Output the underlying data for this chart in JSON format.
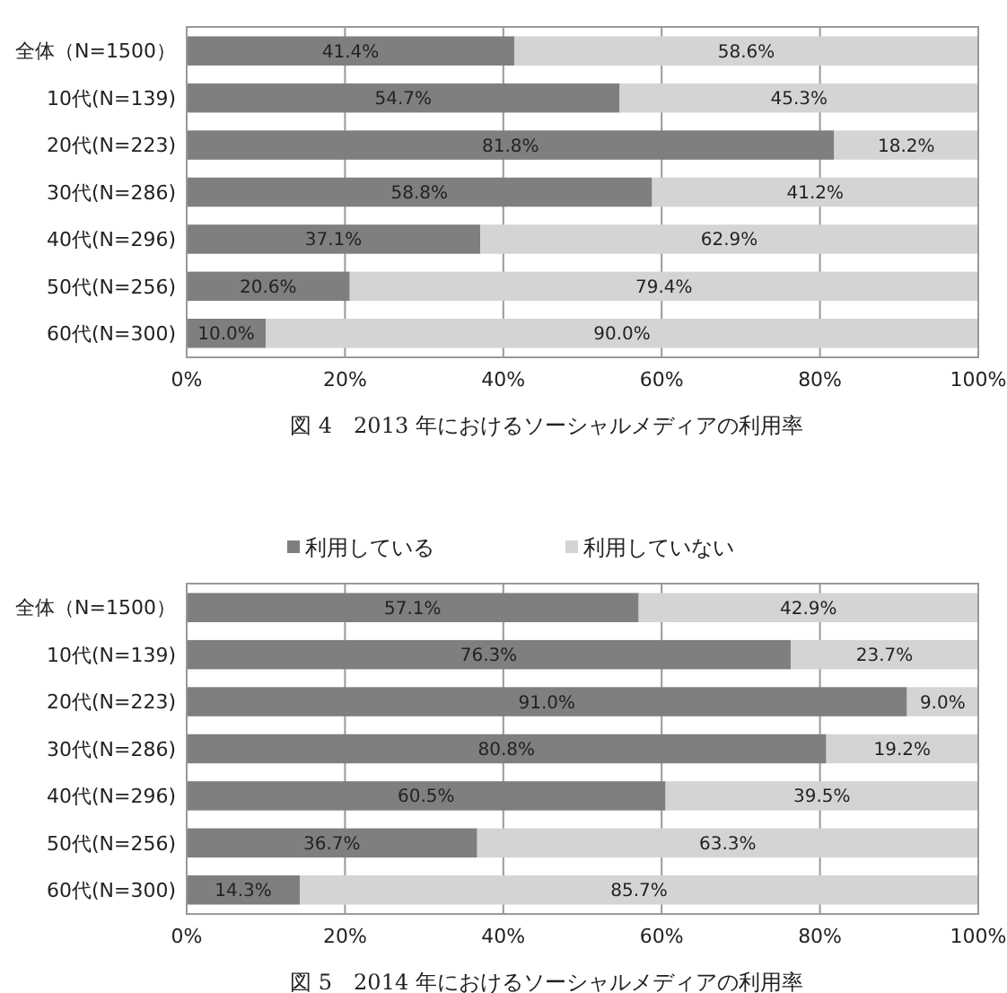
{
  "chart_data": [
    {
      "type": "bar",
      "orientation": "horizontal",
      "stacked": true,
      "categories": [
        "全体（N=1500）",
        "10代(N=139)",
        "20代(N=223)",
        "30代(N=286)",
        "40代(N=296)",
        "50代(N=256)",
        "60代(N=300)"
      ],
      "series": [
        {
          "color": "#7f7f7f",
          "values": [
            41.4,
            54.7,
            81.8,
            58.8,
            37.1,
            20.6,
            10.0
          ],
          "value_labels": [
            "41.4%",
            "54.7%",
            "81.8%",
            "58.8%",
            "37.1%",
            "20.6%",
            "10.0%"
          ]
        },
        {
          "color": "#d4d4d4",
          "values": [
            58.6,
            45.3,
            18.2,
            41.2,
            62.9,
            79.4,
            90.0
          ],
          "value_labels": [
            "58.6%",
            "45.3%",
            "18.2%",
            "41.2%",
            "62.9%",
            "79.4%",
            "90.0%"
          ]
        }
      ],
      "xlim": [
        0,
        100
      ],
      "xticks": [
        {
          "value": 0,
          "label": "0%"
        },
        {
          "value": 20,
          "label": "20%"
        },
        {
          "value": 40,
          "label": "40%"
        },
        {
          "value": 60,
          "label": "60%"
        },
        {
          "value": 80,
          "label": "80%"
        },
        {
          "value": 100,
          "label": "100%"
        }
      ],
      "grid": "x",
      "annotations": [
        "図 4　2013 年におけるソーシャルメディアの利用率"
      ]
    },
    {
      "type": "bar",
      "orientation": "horizontal",
      "stacked": true,
      "categories": [
        "全体（N=1500）",
        "10代(N=139)",
        "20代(N=223)",
        "30代(N=286)",
        "40代(N=296)",
        "50代(N=256)",
        "60代(N=300)"
      ],
      "series": [
        {
          "name": "利用している",
          "color": "#7f7f7f",
          "values": [
            57.1,
            76.3,
            91.0,
            80.8,
            60.5,
            36.7,
            14.3
          ],
          "value_labels": [
            "57.1%",
            "76.3%",
            "91.0%",
            "80.8%",
            "60.5%",
            "36.7%",
            "14.3%"
          ]
        },
        {
          "name": "利用していない",
          "color": "#d4d4d4",
          "values": [
            42.9,
            23.7,
            9.0,
            19.2,
            39.5,
            63.3,
            85.7
          ],
          "value_labels": [
            "42.9%",
            "23.7%",
            "9.0%",
            "19.2%",
            "39.5%",
            "63.3%",
            "85.7%"
          ]
        }
      ],
      "xlim": [
        0,
        100
      ],
      "xticks": [
        {
          "value": 0,
          "label": "0%"
        },
        {
          "value": 20,
          "label": "20%"
        },
        {
          "value": 40,
          "label": "40%"
        },
        {
          "value": 60,
          "label": "60%"
        },
        {
          "value": 80,
          "label": "80%"
        },
        {
          "value": 100,
          "label": "100%"
        }
      ],
      "grid": "x",
      "legend": "top",
      "annotations": [
        "図 5　2014 年におけるソーシャルメディアの利用率"
      ]
    }
  ]
}
